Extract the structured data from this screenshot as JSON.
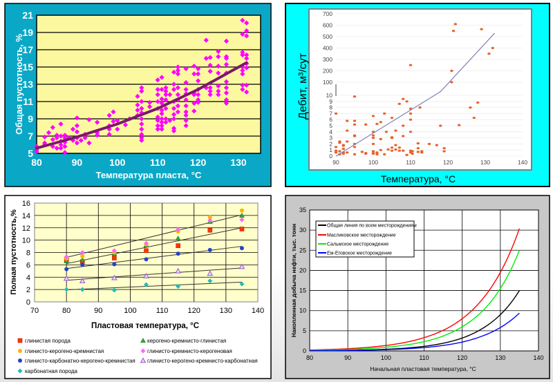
{
  "chart_data": [
    {
      "type": "scatter",
      "xlabel": "Температура пласта, °C",
      "ylabel": "Общая пустотность, %",
      "xlim": [
        80,
        135
      ],
      "ylim": [
        5,
        21
      ],
      "x_ticks": [
        "80",
        "90",
        "100",
        "110",
        "120",
        "130"
      ],
      "y_ticks": [
        "5",
        "7",
        "9",
        "11",
        "13",
        "15",
        "17",
        "19",
        "21"
      ],
      "grid": "horizontal",
      "colors": {
        "background": "#0AA8C6",
        "plot": "#FCF8A0",
        "points": "#FF00FF",
        "trend": "#7A1A6A"
      },
      "points_by_x": [
        {
          "x": 80,
          "y": [
            5.2,
            5.4,
            5.8
          ]
        },
        {
          "x": 82,
          "y": [
            6.0,
            6.2,
            6.9
          ]
        },
        {
          "x": 83,
          "y": [
            7.4
          ]
        },
        {
          "x": 84,
          "y": [
            5.8,
            6.6,
            8.0
          ]
        },
        {
          "x": 85,
          "y": [
            5.6,
            6.8,
            7.1
          ]
        },
        {
          "x": 86,
          "y": [
            5.6,
            6.0,
            6.4,
            7.0,
            8.4
          ]
        },
        {
          "x": 87,
          "y": [
            5.1,
            5.8,
            6.3,
            6.8,
            7.1
          ]
        },
        {
          "x": 88,
          "y": [
            6.8
          ]
        },
        {
          "x": 89,
          "y": [
            6.5,
            7.8
          ]
        },
        {
          "x": 90,
          "y": [
            6.2,
            6.8,
            7.5,
            8.2,
            9.1
          ]
        },
        {
          "x": 91,
          "y": [
            6.5
          ]
        },
        {
          "x": 92,
          "y": [
            6.8,
            7.2
          ]
        },
        {
          "x": 93,
          "y": [
            6.2,
            8.9
          ]
        },
        {
          "x": 95,
          "y": [
            7.1,
            7.4,
            8.6
          ]
        },
        {
          "x": 98,
          "y": [
            7.2,
            7.8,
            8.2,
            9.4
          ]
        },
        {
          "x": 99,
          "y": [
            8.7,
            9.8
          ]
        },
        {
          "x": 100,
          "y": [
            7.8,
            8.8
          ]
        },
        {
          "x": 102,
          "y": [
            8.3
          ]
        },
        {
          "x": 103,
          "y": [
            9.0
          ]
        },
        {
          "x": 105,
          "y": [
            9.4,
            10.0,
            10.6,
            11.6
          ]
        },
        {
          "x": 106,
          "y": [
            6.5,
            6.8,
            7.2,
            7.8,
            8.4,
            9.0,
            9.7,
            10.2,
            11.0,
            12.2,
            12.6
          ]
        },
        {
          "x": 108,
          "y": [
            10.4,
            10.9
          ]
        },
        {
          "x": 110,
          "y": [
            7.8,
            8.2,
            8.8,
            9.2,
            10.2,
            11.0,
            11.8,
            12.4,
            13.5
          ]
        },
        {
          "x": 111,
          "y": [
            7.8,
            8.2,
            8.6,
            9.0,
            9.6,
            10.0,
            10.8,
            11.3,
            12.4,
            13.8
          ]
        },
        {
          "x": 112,
          "y": [
            8.6,
            9.0,
            10.2,
            11.2,
            11.8,
            12.2,
            12.6
          ]
        },
        {
          "x": 113,
          "y": [
            8.8,
            11.8
          ]
        },
        {
          "x": 114,
          "y": [
            7.6,
            7.9,
            9.0,
            9.5,
            10.2,
            11.0,
            12.4,
            13.0,
            14.4
          ]
        },
        {
          "x": 115,
          "y": [
            9.8,
            10.5,
            11.2,
            11.8,
            12.6,
            14.2,
            14.6,
            15.0
          ]
        },
        {
          "x": 117,
          "y": [
            8.2,
            8.8,
            9.4,
            9.8,
            10.5,
            11.2,
            11.9,
            12.4,
            13.2,
            14.8
          ]
        },
        {
          "x": 119,
          "y": [
            9.9,
            10.8,
            11.8,
            12.0,
            14.2,
            15.1
          ]
        },
        {
          "x": 120,
          "y": [
            10.9,
            11.2,
            11.8,
            12.4,
            13.4,
            14.2,
            14.8
          ]
        },
        {
          "x": 122,
          "y": [
            12.6,
            16.0,
            18.1
          ]
        },
        {
          "x": 123,
          "y": [
            11.8,
            12.2,
            12.6,
            14.5,
            15.2,
            16.1
          ]
        },
        {
          "x": 125,
          "y": [
            11.8,
            12.2,
            12.8,
            14.3,
            15.1,
            16.2,
            16.8
          ]
        },
        {
          "x": 127,
          "y": [
            10.8,
            11.2,
            12.0,
            12.6,
            13.3,
            14.3,
            15.3,
            16.0,
            16.2,
            18.0
          ]
        },
        {
          "x": 131,
          "y": [
            12.4,
            12.9,
            14.2,
            14.6,
            15.0,
            16.4,
            16.7,
            18.8,
            20.4
          ]
        },
        {
          "x": 132,
          "y": [
            12.1,
            12.9,
            14.9,
            15.4,
            16.0,
            16.4,
            18.6,
            19.2,
            20.1
          ]
        }
      ],
      "trend": {
        "x": [
          80,
          90,
          100,
          110,
          120,
          132
        ],
        "y": [
          5.6,
          6.9,
          8.4,
          10.2,
          12.4,
          15.5
        ]
      }
    },
    {
      "type": "scatter",
      "xlabel": "Температура, °C",
      "ylabel": "Дебит, м³/сут",
      "xlim": [
        90,
        140
      ],
      "y_axis": "broken: 0–10 linear, 100–700 linear",
      "x_ticks": [
        "90",
        "100",
        "110",
        "120",
        "130",
        "140"
      ],
      "y_ticks_lower": [
        "0",
        "1",
        "2",
        "3",
        "4",
        "5",
        "6",
        "7",
        "8",
        "9",
        "10"
      ],
      "y_ticks_upper": [
        "100",
        "200",
        "300",
        "400",
        "500",
        "600",
        "700"
      ],
      "grid": "horizontal",
      "colors": {
        "background": "#00FFFF",
        "points": "#E8622A",
        "trend": "#7F7FB8"
      },
      "points": [
        [
          90,
          7
        ],
        [
          90,
          1.5
        ],
        [
          90,
          0.9
        ],
        [
          90,
          0.6
        ],
        [
          91,
          2.4
        ],
        [
          91,
          2.2
        ],
        [
          91,
          0.8
        ],
        [
          91,
          0.3
        ],
        [
          92,
          1.8
        ],
        [
          92,
          1.7
        ],
        [
          92,
          1.2
        ],
        [
          92,
          0.6
        ],
        [
          92,
          0.4
        ],
        [
          93,
          5.8
        ],
        [
          93,
          4.2
        ],
        [
          93,
          2.4
        ],
        [
          93,
          0.6
        ],
        [
          95,
          9.8
        ],
        [
          95,
          5.8
        ],
        [
          95,
          5.2
        ],
        [
          95,
          3.4
        ],
        [
          95,
          3.3
        ],
        [
          95,
          2
        ],
        [
          95,
          1.5
        ],
        [
          95,
          0.3
        ],
        [
          97,
          0.7
        ],
        [
          98,
          5.2
        ],
        [
          98,
          0.5
        ],
        [
          98,
          0.4
        ],
        [
          100,
          6.6
        ],
        [
          100,
          4
        ],
        [
          100,
          3.4
        ],
        [
          100,
          3
        ],
        [
          100,
          2
        ],
        [
          100,
          0.8
        ],
        [
          100,
          0.5
        ],
        [
          100,
          0.4
        ],
        [
          101,
          5.3
        ],
        [
          101,
          0.6
        ],
        [
          101,
          0.3
        ],
        [
          102,
          5.6
        ],
        [
          102,
          2.8
        ],
        [
          102,
          1
        ],
        [
          103,
          7
        ],
        [
          103,
          0.3
        ],
        [
          103.5,
          4
        ],
        [
          104,
          1.1
        ],
        [
          105,
          6.3
        ],
        [
          105,
          3.1
        ],
        [
          105,
          3
        ],
        [
          105,
          1.4
        ],
        [
          105,
          0.9
        ],
        [
          106,
          4.2
        ],
        [
          106,
          1.8
        ],
        [
          106,
          1.1
        ],
        [
          107,
          8.6
        ],
        [
          107,
          1.4
        ],
        [
          107,
          0.9
        ],
        [
          108,
          9.4
        ],
        [
          108,
          5
        ],
        [
          108,
          3.3
        ],
        [
          108,
          0.9
        ],
        [
          109,
          9
        ],
        [
          109,
          0.2
        ],
        [
          110,
          250
        ],
        [
          110,
          7.8
        ],
        [
          110,
          7
        ],
        [
          110,
          6
        ],
        [
          110,
          4
        ],
        [
          110,
          0.9
        ],
        [
          110,
          0.6
        ],
        [
          110.5,
          0.8
        ],
        [
          110.5,
          0.4
        ],
        [
          112,
          2.1
        ],
        [
          112,
          1.3
        ],
        [
          112,
          0.7
        ],
        [
          112.5,
          8
        ],
        [
          113,
          0.8
        ],
        [
          113,
          0.6
        ],
        [
          115,
          2
        ],
        [
          117,
          1.8
        ],
        [
          118,
          5
        ],
        [
          119,
          1.3
        ],
        [
          119,
          0.8
        ],
        [
          121,
          200
        ],
        [
          121,
          100
        ],
        [
          121.5,
          550
        ],
        [
          122,
          610
        ],
        [
          123,
          5.1
        ],
        [
          126,
          8
        ],
        [
          127,
          6.3
        ],
        [
          128,
          8.8
        ],
        [
          129,
          565
        ],
        [
          131,
          350
        ],
        [
          132,
          400
        ]
      ],
      "trend": {
        "x": [
          90,
          118,
          132.5
        ],
        "y": [
          0,
          35,
          530
        ]
      }
    },
    {
      "type": "scatter",
      "xlabel": "Пластовая температура, °C",
      "ylabel": "Полная пустотность,%",
      "xlim": [
        70,
        140
      ],
      "ylim": [
        0,
        16
      ],
      "x_ticks": [
        "70",
        "80",
        "90",
        "100",
        "110",
        "120",
        "130",
        "140"
      ],
      "y_ticks": [
        "0",
        "2",
        "4",
        "6",
        "8",
        "10",
        "12",
        "14",
        "16"
      ],
      "grid": "both",
      "legend": "bottom",
      "x": [
        80,
        85,
        95,
        105,
        115,
        125,
        135
      ],
      "series": [
        {
          "name": "глинистая порода",
          "marker": "square",
          "color": "#FF3300",
          "values": [
            6.8,
            6.5,
            7.1,
            8.3,
            9.1,
            11.6,
            11.8
          ]
        },
        {
          "name": "керогено-кремнисто-глинистая",
          "marker": "triangle",
          "color": "#33AA33",
          "values": [
            6.6,
            6.8,
            7.8,
            9.2,
            10.3,
            13.0,
            14.0
          ]
        },
        {
          "name": "глинисто-керогено-кремнистая",
          "marker": "circle",
          "color": "#FFB300",
          "values": [
            7.0,
            7.4,
            8.0,
            9.3,
            11.4,
            13.7,
            14.8
          ]
        },
        {
          "name": "глинисто-кремнисто-керогеновая",
          "marker": "diamond",
          "color": "#FF66FF",
          "values": [
            7.3,
            8.0,
            8.3,
            9.5,
            11.7,
            13.2,
            13.3
          ]
        },
        {
          "name": "глинисто-карбонатно-керогено-кремнистая",
          "marker": "circle",
          "color": "#2244CC",
          "values": [
            5.3,
            6.0,
            6.1,
            6.9,
            7.8,
            8.4,
            8.7
          ]
        },
        {
          "name": "глинисто-керогено-кремнисто-карбонатная",
          "marker": "triangle-open",
          "color": "#9955CC",
          "values": [
            3.8,
            3.4,
            3.9,
            4.2,
            5.0,
            4.6,
            5.7
          ]
        },
        {
          "name": "карбонатная порода",
          "marker": "diamond",
          "color": "#22BBBB",
          "values": [
            2.0,
            2.0,
            1.9,
            2.8,
            2.5,
            3.4,
            2.9
          ]
        }
      ],
      "trendlines": [
        {
          "x": [
            80,
            135
          ],
          "y": [
            7.2,
            14.1
          ]
        },
        {
          "x": [
            80,
            135
          ],
          "y": [
            6.2,
            12.0
          ]
        },
        {
          "x": [
            80,
            135
          ],
          "y": [
            5.4,
            9.0
          ]
        },
        {
          "x": [
            80,
            135
          ],
          "y": [
            3.5,
            5.5
          ]
        },
        {
          "x": [
            80,
            135
          ],
          "y": [
            1.95,
            3.2
          ]
        }
      ]
    },
    {
      "type": "line",
      "xlabel": "Начальная пластовая температура, °C",
      "ylabel": "Накопленная добыча нефти, тыс. тонн",
      "xlim": [
        80,
        140
      ],
      "ylim": [
        0,
        35
      ],
      "x_ticks": [
        "80",
        "90",
        "100",
        "110",
        "120",
        "130",
        "140"
      ],
      "y_ticks": [
        "0",
        "5",
        "10",
        "15",
        "20",
        "25",
        "30",
        "35"
      ],
      "grid": "both",
      "legend": "top-left",
      "x": [
        80,
        85,
        90,
        95,
        100,
        105,
        110,
        115,
        120,
        125,
        130,
        135
      ],
      "series": [
        {
          "name": "Общая линия по всем месторождениям",
          "color": "#000000",
          "values": [
            0.05,
            0.09,
            0.15,
            0.24,
            0.41,
            0.68,
            1.14,
            1.9,
            3.2,
            5.4,
            9.0,
            15.0
          ]
        },
        {
          "name": "Масликовское месторождение",
          "color": "#FF0000",
          "values": [
            0.23,
            0.36,
            0.55,
            0.86,
            1.35,
            2.1,
            3.3,
            5.1,
            8.0,
            12.5,
            19.5,
            30.4
          ]
        },
        {
          "name": "Сальмское месторождение",
          "color": "#00EE00",
          "values": [
            0.13,
            0.22,
            0.35,
            0.56,
            0.9,
            1.44,
            2.3,
            3.7,
            6.0,
            9.6,
            15.5,
            25.0
          ]
        },
        {
          "name": "Ем-Еговское месторождение",
          "color": "#0000FF",
          "values": [
            0.05,
            0.07,
            0.12,
            0.19,
            0.32,
            0.51,
            0.83,
            1.36,
            2.2,
            3.6,
            5.8,
            9.4
          ]
        }
      ]
    }
  ]
}
